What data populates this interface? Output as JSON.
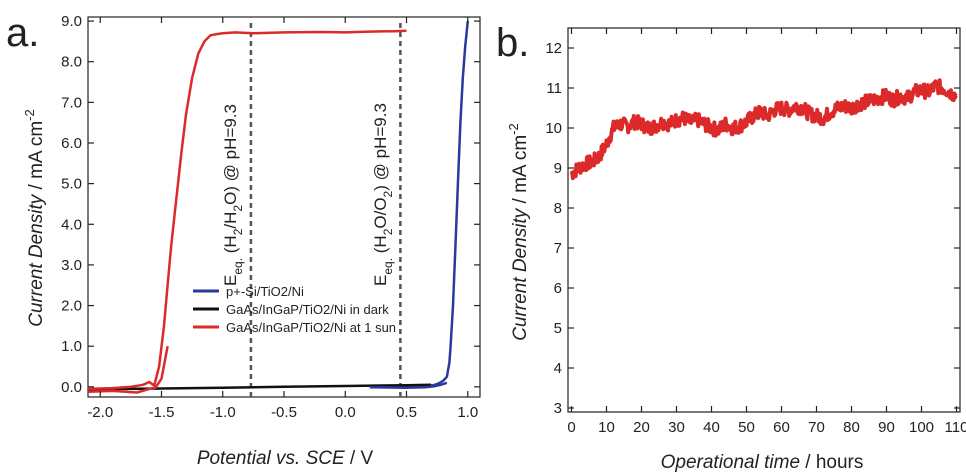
{
  "chart_data": [
    {
      "panel_label": "a.",
      "type": "line",
      "title": "",
      "xlabel_italic": "Potential vs. SCE",
      "xlabel_unit": " / V",
      "ylabel_italic": "Current Density",
      "ylabel_unit": " /  mA cm",
      "ylabel_sup": "-2",
      "xlim": [
        -2.1,
        1.1
      ],
      "ylim": [
        -0.25,
        9.1
      ],
      "xticks": [
        -2.0,
        -1.5,
        -1.0,
        -0.5,
        0.0,
        0.5,
        1.0
      ],
      "xtick_labels": [
        "-2.0",
        "-1.5",
        "-1.0",
        "-0.5",
        "0.0",
        "0.5",
        "1.0"
      ],
      "yticks": [
        0,
        1,
        2,
        3,
        4,
        5,
        6,
        7,
        8,
        9
      ],
      "ytick_labels": [
        "0.0",
        "1.0",
        "2.0",
        "3.0",
        "4.0",
        "5.0",
        "6.0",
        "7.0",
        "8.0",
        "9.0"
      ],
      "legend_position": "lower-center",
      "series": [
        {
          "name": "p+-Si/TiO2/Ni",
          "color": "#2a3a9a",
          "x": [
            0.2,
            0.4,
            0.6,
            0.72,
            0.76,
            0.8,
            0.83,
            0.85,
            0.86,
            0.88,
            0.9,
            0.92,
            0.94,
            0.96,
            0.98,
            1.0
          ],
          "y": [
            0.0,
            0.01,
            0.02,
            0.04,
            0.08,
            0.15,
            0.25,
            0.6,
            1.0,
            2.0,
            3.5,
            5.0,
            6.5,
            7.6,
            8.4,
            9.0
          ]
        },
        {
          "name": "GaAs/InGaP/TiO2/Ni in dark",
          "color": "#111111",
          "x": [
            -2.1,
            -1.5,
            -1.0,
            -0.5,
            0.0,
            0.5,
            0.7
          ],
          "y": [
            -0.06,
            -0.04,
            -0.02,
            0.0,
            0.02,
            0.04,
            0.05
          ]
        },
        {
          "name": "GaAs/InGaP/TiO2/Ni at 1 sun",
          "color": "#dc2a2a",
          "x": [
            -2.1,
            -1.9,
            -1.75,
            -1.65,
            -1.6,
            -1.56,
            -1.52,
            -1.48,
            -1.45,
            -1.42,
            -1.38,
            -1.34,
            -1.3,
            -1.25,
            -1.2,
            -1.15,
            -1.1,
            -1.05,
            -1.0,
            -0.9,
            -0.75,
            -0.5,
            -0.2,
            0.0,
            0.2,
            0.4,
            0.5
          ],
          "y": [
            -0.05,
            -0.03,
            0.0,
            0.05,
            0.12,
            0.03,
            0.5,
            1.5,
            2.5,
            3.5,
            4.6,
            5.7,
            6.7,
            7.6,
            8.2,
            8.5,
            8.65,
            8.68,
            8.7,
            8.72,
            8.7,
            8.72,
            8.73,
            8.72,
            8.74,
            8.75,
            8.76
          ]
        },
        {
          "name": "",
          "color": "#dc2a2a",
          "x": [
            -2.1,
            -1.9,
            -1.7,
            -1.6,
            -1.55,
            -1.5,
            -1.45
          ],
          "y": [
            -0.12,
            -0.1,
            -0.14,
            -0.05,
            -0.02,
            0.2,
            1.0
          ]
        },
        {
          "name": "",
          "color": "#2a3a9a",
          "x": [
            0.2,
            0.5,
            0.65,
            0.72,
            0.78,
            0.83
          ],
          "y": [
            -0.01,
            -0.02,
            -0.01,
            0.01,
            0.05,
            0.1
          ]
        }
      ],
      "vlines": [
        {
          "x": -0.77,
          "label_main": "E",
          "label_sub": "eq.",
          "label_rest_1": " (H",
          "label_sub2": "2",
          "label_rest_2": "/H",
          "label_sub3": "2",
          "label_rest_3": "O) @ pH=9.3"
        },
        {
          "x": 0.45,
          "label_main": "E",
          "label_sub": "eq.",
          "label_rest_1": " (H",
          "label_sub2": "2",
          "label_rest_2": "O/O",
          "label_sub3": "2",
          "label_rest_3": ") @ pH=9.3"
        }
      ]
    },
    {
      "panel_label": "b.",
      "type": "line",
      "title": "",
      "xlabel_italic": "Operational time",
      "xlabel_unit": " / hours",
      "ylabel_italic": "Current Density",
      "ylabel_unit": " / mA cm",
      "ylabel_sup": "-2",
      "xlim": [
        -1,
        111
      ],
      "ylim": [
        2.9,
        12.5
      ],
      "xticks": [
        0,
        10,
        20,
        30,
        40,
        50,
        60,
        70,
        80,
        90,
        100,
        110
      ],
      "xtick_labels": [
        "0",
        "10",
        "20",
        "30",
        "40",
        "50",
        "60",
        "70",
        "80",
        "90",
        "100",
        "110"
      ],
      "yticks": [
        3,
        4,
        5,
        6,
        7,
        8,
        9,
        10,
        11,
        12
      ],
      "ytick_labels": [
        "3",
        "4",
        "5",
        "6",
        "7",
        "8",
        "9",
        "10",
        "11",
        "12"
      ],
      "series": [
        {
          "name": "",
          "color": "#dc2a2a",
          "x": [
            0,
            2,
            4,
            6,
            8,
            10,
            12,
            14,
            16,
            18,
            20,
            22,
            24,
            26,
            28,
            30,
            32,
            34,
            36,
            38,
            40,
            42,
            44,
            46,
            48,
            50,
            52,
            54,
            56,
            58,
            60,
            62,
            64,
            66,
            68,
            70,
            72,
            74,
            76,
            78,
            80,
            82,
            84,
            86,
            88,
            90,
            92,
            94,
            96,
            98,
            100,
            102,
            104,
            106,
            108,
            110
          ],
          "y": [
            8.85,
            9.0,
            9.1,
            9.15,
            9.3,
            9.6,
            10.0,
            10.1,
            10.05,
            10.15,
            10.1,
            10.0,
            10.05,
            10.15,
            10.1,
            10.2,
            10.25,
            10.15,
            10.2,
            10.1,
            10.0,
            9.95,
            10.1,
            10.0,
            10.05,
            10.15,
            10.3,
            10.4,
            10.3,
            10.45,
            10.5,
            10.45,
            10.55,
            10.5,
            10.35,
            10.3,
            10.25,
            10.4,
            10.5,
            10.55,
            10.5,
            10.6,
            10.65,
            10.7,
            10.75,
            10.8,
            10.7,
            10.8,
            10.75,
            10.9,
            10.95,
            10.9,
            11.05,
            11.0,
            10.9,
            10.8
          ]
        }
      ]
    }
  ]
}
